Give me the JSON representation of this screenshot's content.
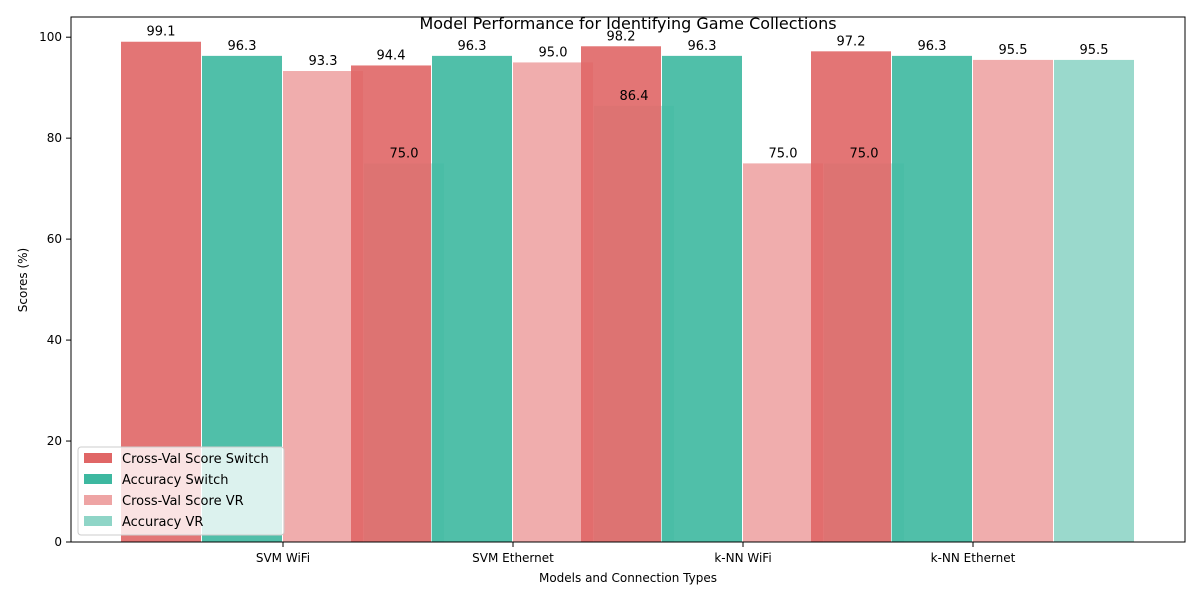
{
  "chart_data": {
    "type": "bar",
    "title": "Model Performance for Identifying Game Collections",
    "xlabel": "Models and Connection Types",
    "ylabel": "Scores (%)",
    "categories": [
      "SVM WiFi",
      "SVM Ethernet",
      "k-NN WiFi",
      "k-NN Ethernet"
    ],
    "yticks": [
      0,
      20,
      40,
      60,
      80,
      100
    ],
    "ylim": [
      0,
      104
    ],
    "grid": false,
    "legend_position": "lower-left",
    "series": [
      {
        "name": "Cross-Val Score Switch",
        "color": "#e06666",
        "values": [
          99.1,
          94.4,
          98.2,
          97.2
        ]
      },
      {
        "name": "Accuracy Switch",
        "color": "#3db8a0",
        "values": [
          96.3,
          96.3,
          96.3,
          96.3
        ]
      },
      {
        "name": "Cross-Val Score VR",
        "color": "#eea4a4",
        "values": [
          93.3,
          95.0,
          75.0,
          95.5
        ]
      },
      {
        "name": "Accuracy VR",
        "color": "#8fd5c7",
        "values": [
          75.0,
          86.4,
          75.0,
          95.5
        ]
      }
    ]
  }
}
